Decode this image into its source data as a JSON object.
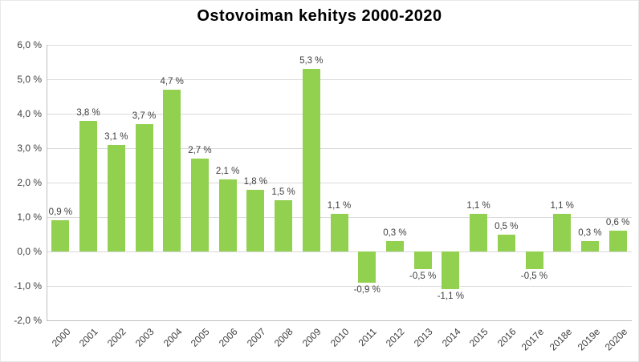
{
  "chart_data": {
    "type": "bar",
    "title": "Ostovoiman kehitys 2000-2020",
    "xlabel": "",
    "ylabel": "",
    "grid": true,
    "legend": "none",
    "bar_color": "#92d050",
    "ylim": [
      -2,
      6
    ],
    "y_tick_values": [
      6,
      5,
      4,
      3,
      2,
      1,
      0,
      -1,
      -2
    ],
    "y_tick_labels": [
      "6,0 %",
      "5,0 %",
      "4,0 %",
      "3,0 %",
      "2,0 %",
      "1,0 %",
      "0,0 %",
      "-1,0 %",
      "-2,0 %"
    ],
    "categories": [
      "2000",
      "2001",
      "2002",
      "2003",
      "2004",
      "2005",
      "2006",
      "2007",
      "2008",
      "2009",
      "2010",
      "2011",
      "2012",
      "2013",
      "2014",
      "2015",
      "2016",
      "2017e",
      "2018e",
      "2019e",
      "2020e"
    ],
    "values": [
      0.9,
      3.8,
      3.1,
      3.7,
      4.7,
      2.7,
      2.1,
      1.8,
      1.5,
      5.3,
      1.1,
      -0.9,
      0.3,
      -0.5,
      -1.1,
      1.1,
      0.5,
      -0.5,
      1.1,
      0.3,
      0.6
    ],
    "value_labels": [
      "0,9 %",
      "3,8 %",
      "3,1 %",
      "3,7 %",
      "4,7 %",
      "2,7 %",
      "2,1 %",
      "1,8 %",
      "1,5 %",
      "5,3 %",
      "1,1 %",
      "-0,9 %",
      "0,3 %",
      "-0,5 %",
      "-1,1 %",
      "1,1 %",
      "0,5 %",
      "-0,5 %",
      "1,1 %",
      "0,3 %",
      "0,6 %"
    ]
  }
}
